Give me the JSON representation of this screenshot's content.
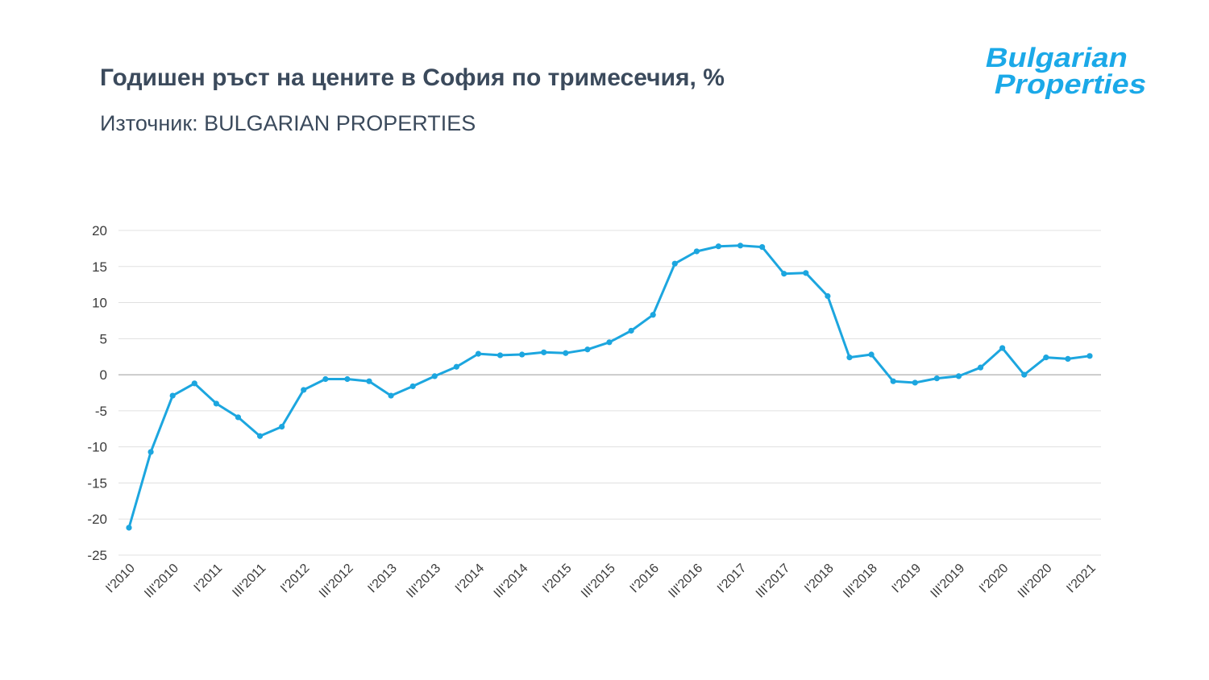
{
  "title": "Годишен ръст на цените в София по тримесечия, %",
  "subtitle": "Източник: BULGARIAN PROPERTIES",
  "logo": {
    "line1": "Bulgarian",
    "line2": "Properties",
    "color": "#1ba9e8"
  },
  "chart_data": {
    "type": "line",
    "color": "#1ca6df",
    "ylim": [
      -25,
      20
    ],
    "yticks": [
      20,
      15,
      10,
      5,
      0,
      -5,
      -10,
      -15,
      -20,
      -25
    ],
    "grid": true,
    "legend": "none",
    "x": [
      "I'2010",
      "II'2010",
      "III'2010",
      "IV'2010",
      "I'2011",
      "II'2011",
      "III'2011",
      "IV'2011",
      "I'2012",
      "II'2012",
      "III'2012",
      "IV'2012",
      "I'2013",
      "II'2013",
      "III'2013",
      "IV'2013",
      "I'2014",
      "II'2014",
      "III'2014",
      "IV'2014",
      "I'2015",
      "II'2015",
      "III'2015",
      "IV'2015",
      "I'2016",
      "II'2016",
      "III'2016",
      "IV'2016",
      "I'2017",
      "II'2017",
      "III'2017",
      "IV'2017",
      "I'2018",
      "II'2018",
      "III'2018",
      "IV'2018",
      "I'2019",
      "II'2019",
      "III'2019",
      "IV'2019",
      "I'2020",
      "II'2020",
      "III'2020",
      "IV'2020",
      "I'2021"
    ],
    "xtick_labels": [
      "I'2010",
      "III'2010",
      "I'2011",
      "III'2011",
      "I'2012",
      "III'2012",
      "I'2013",
      "III'2013",
      "I'2014",
      "III'2014",
      "I'2015",
      "III'2015",
      "I'2016",
      "III'2016",
      "I'2017",
      "III'2017",
      "I'2018",
      "III'2018",
      "I'2019",
      "III'2019",
      "I'2020",
      "III'2020",
      "I'2021"
    ],
    "series": [
      {
        "values": [
          -21.2,
          -10.7,
          -2.9,
          -1.2,
          -4.0,
          -5.9,
          -8.5,
          -7.2,
          -2.1,
          -0.6,
          -0.6,
          -0.9,
          -2.9,
          -1.6,
          -0.2,
          1.1,
          2.9,
          2.7,
          2.8,
          3.1,
          3.0,
          3.5,
          4.5,
          6.1,
          8.3,
          15.4,
          17.1,
          17.8,
          17.9,
          17.7,
          14.0,
          14.1,
          10.9,
          2.4,
          2.8,
          -0.9,
          -1.1,
          -0.5,
          -0.2,
          1.0,
          3.7,
          0.0,
          2.4,
          2.2,
          2.6
        ]
      }
    ]
  }
}
